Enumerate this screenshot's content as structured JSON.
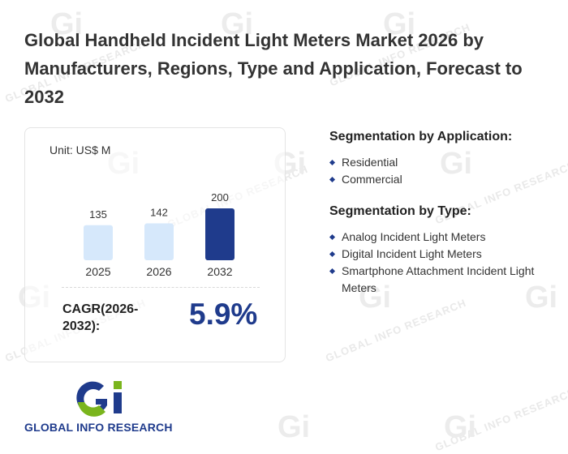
{
  "title": "Global Handheld Incident Light Meters Market 2026 by Manufacturers, Regions, Type and Application, Forecast to 2032",
  "colors": {
    "accent": "#1f3b8c",
    "bar_light": "#d6e8fb",
    "bar_dark": "#1f3b8c"
  },
  "chart_data": {
    "type": "bar",
    "unit": "Unit: US$ M",
    "categories": [
      "2025",
      "2026",
      "2032"
    ],
    "values": [
      135,
      142,
      200
    ],
    "highlight": "2032",
    "title": "",
    "xlabel": "",
    "ylabel": ""
  },
  "cagr": {
    "label": "CAGR(2026-2032):",
    "value": "5.9%"
  },
  "segmentation": {
    "application": {
      "heading": "Segmentation by Application:",
      "items": [
        "Residential",
        "Commercial"
      ]
    },
    "type": {
      "heading": "Segmentation by Type:",
      "items": [
        "Analog Incident Light Meters",
        "Digital Incident Light Meters",
        "Smartphone Attachment Incident Light Meters"
      ]
    }
  },
  "brand": {
    "name": "GLOBAL INFO RESEARCH",
    "watermark": "GLOBAL INFO RESEARCH",
    "watermark_logo": "Gi"
  }
}
